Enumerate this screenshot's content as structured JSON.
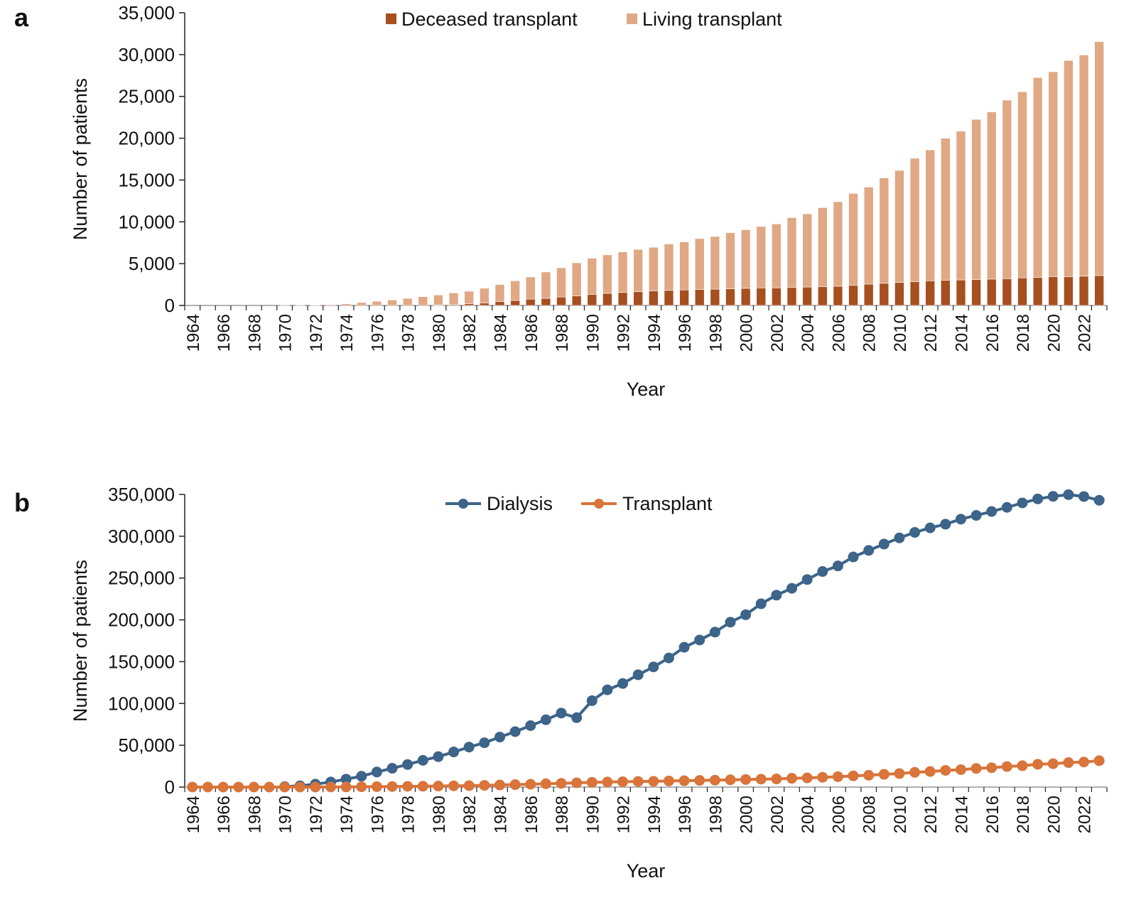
{
  "chart_data": [
    {
      "panel_label": "a",
      "type": "bar",
      "stacked": true,
      "xlabel": "Year",
      "ylabel": "Number of patients",
      "ylim": [
        0,
        35000
      ],
      "yticks": [
        "0",
        "5,000",
        "10,000",
        "15,000",
        "20,000",
        "25,000",
        "30,000",
        "35,000"
      ],
      "legend_position": "top-center",
      "categories": [
        1964,
        1965,
        1966,
        1967,
        1968,
        1969,
        1970,
        1971,
        1972,
        1973,
        1974,
        1975,
        1976,
        1977,
        1978,
        1979,
        1980,
        1981,
        1982,
        1983,
        1984,
        1985,
        1986,
        1987,
        1988,
        1989,
        1990,
        1991,
        1992,
        1993,
        1994,
        1995,
        1996,
        1997,
        1998,
        1999,
        2000,
        2001,
        2002,
        2003,
        2004,
        2005,
        2006,
        2007,
        2008,
        2009,
        2010,
        2011,
        2012,
        2013,
        2014,
        2015,
        2016,
        2017,
        2018,
        2019,
        2020,
        2021,
        2022,
        2023
      ],
      "series": [
        {
          "name": "Deceased transplant",
          "color": "#a64f1f",
          "values": [
            0,
            0,
            0,
            0,
            0,
            0,
            0,
            0,
            0,
            0,
            0,
            0,
            0,
            0,
            0,
            0,
            50,
            100,
            200,
            300,
            450,
            600,
            750,
            850,
            1000,
            1150,
            1300,
            1450,
            1550,
            1650,
            1750,
            1800,
            1850,
            1900,
            1950,
            2000,
            2050,
            2100,
            2100,
            2150,
            2200,
            2250,
            2300,
            2400,
            2550,
            2650,
            2750,
            2850,
            2950,
            3000,
            3050,
            3100,
            3150,
            3200,
            3300,
            3350,
            3450,
            3450,
            3500,
            3580
          ]
        },
        {
          "name": "Living transplant",
          "color": "#e0a884",
          "values": [
            0,
            0,
            0,
            0,
            0,
            0,
            20,
            30,
            50,
            100,
            200,
            350,
            500,
            650,
            850,
            1050,
            1200,
            1400,
            1500,
            1750,
            2050,
            2350,
            2650,
            3150,
            3500,
            3950,
            4350,
            4600,
            4850,
            5050,
            5200,
            5550,
            5750,
            6100,
            6300,
            6700,
            7000,
            7350,
            7650,
            8350,
            8750,
            9450,
            10100,
            11000,
            11600,
            12600,
            13400,
            14750,
            15650,
            17000,
            17800,
            19150,
            20000,
            21350,
            22250,
            23900,
            24500,
            25850,
            26450,
            27970
          ]
        }
      ]
    },
    {
      "panel_label": "b",
      "type": "line",
      "xlabel": "Year",
      "ylabel": "Number of patients",
      "ylim": [
        0,
        350000
      ],
      "yticks": [
        "0",
        "50,000",
        "100,000",
        "150,000",
        "200,000",
        "250,000",
        "300,000",
        "350,000"
      ],
      "legend_position": "top-center",
      "categories": [
        1964,
        1965,
        1966,
        1967,
        1968,
        1969,
        1970,
        1971,
        1972,
        1973,
        1974,
        1975,
        1976,
        1977,
        1978,
        1979,
        1980,
        1981,
        1982,
        1983,
        1984,
        1985,
        1986,
        1987,
        1988,
        1989,
        1990,
        1991,
        1992,
        1993,
        1994,
        1995,
        1996,
        1997,
        1998,
        1999,
        2000,
        2001,
        2002,
        2003,
        2004,
        2005,
        2006,
        2007,
        2008,
        2009,
        2010,
        2011,
        2012,
        2013,
        2014,
        2015,
        2016,
        2017,
        2018,
        2019,
        2020,
        2021,
        2022,
        2023
      ],
      "series": [
        {
          "name": "Dialysis",
          "color": "#3d6489",
          "values": [
            null,
            null,
            null,
            null,
            null,
            null,
            500,
            1500,
            3500,
            6000,
            9500,
            13000,
            18000,
            22500,
            27000,
            32000,
            36400,
            42000,
            47800,
            53000,
            59800,
            66300,
            73500,
            80500,
            88500,
            83000,
            103300,
            116300,
            123900,
            134300,
            143700,
            154400,
            167200,
            175900,
            185300,
            197200,
            206100,
            219200,
            229500,
            237700,
            248200,
            257800,
            264500,
            275200,
            283000,
            290600,
            298000,
            304600,
            310000,
            314400,
            320400,
            324900,
            329600,
            334500,
            339800,
            344600,
            347700,
            349700,
            347500,
            343000
          ]
        },
        {
          "name": "Transplant",
          "color": "#d9743a",
          "values": [
            0,
            0,
            0,
            0,
            0,
            0,
            20,
            30,
            50,
            100,
            200,
            350,
            500,
            650,
            850,
            1050,
            1250,
            1500,
            1700,
            2050,
            2500,
            2950,
            3400,
            4000,
            4500,
            5100,
            5650,
            6050,
            6400,
            6700,
            6950,
            7350,
            7600,
            8000,
            8250,
            8700,
            9050,
            9450,
            9750,
            10500,
            10950,
            11700,
            12400,
            13400,
            14150,
            15250,
            16150,
            17600,
            18600,
            20000,
            20850,
            22250,
            23150,
            24550,
            25550,
            27250,
            27950,
            29300,
            29950,
            31550
          ]
        }
      ]
    }
  ]
}
